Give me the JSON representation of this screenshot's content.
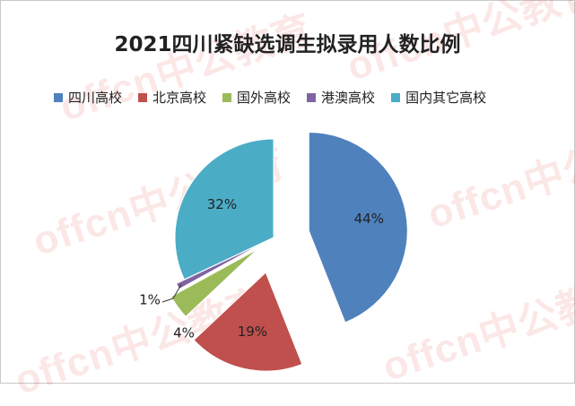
{
  "chart_data": {
    "type": "pie",
    "title": "2021四川紧缺选调生拟录用人数比例",
    "legend_position": "top",
    "slices": [
      {
        "name": "四川高校",
        "value": 44,
        "label": "44%",
        "color": "#4f81bd"
      },
      {
        "name": "北京高校",
        "value": 19,
        "label": "19%",
        "color": "#c0504d"
      },
      {
        "name": "国外高校",
        "value": 4,
        "label": "4%",
        "color": "#9bbb59"
      },
      {
        "name": "港澳高校",
        "value": 1,
        "label": "1%",
        "color": "#8064a2"
      },
      {
        "name": "国内其它高校",
        "value": 32,
        "label": "32%",
        "color": "#4bacc6"
      }
    ]
  },
  "watermark": {
    "text": "offcn中公教育"
  }
}
